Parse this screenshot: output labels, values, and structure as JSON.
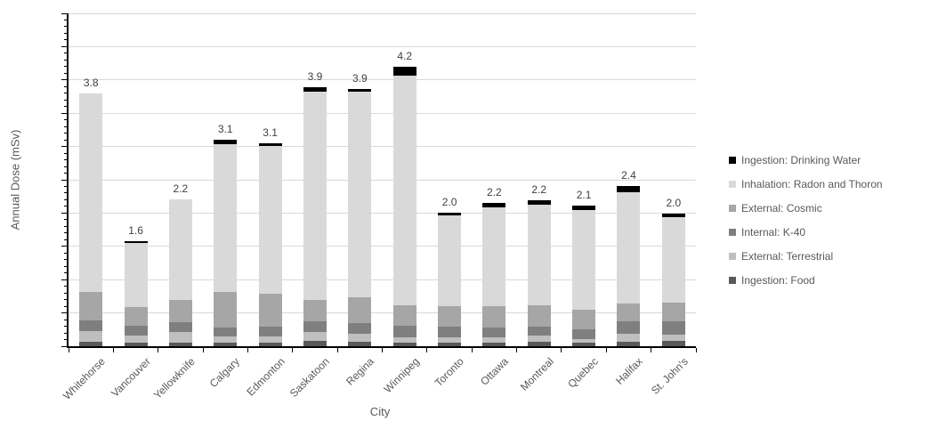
{
  "chart_data": {
    "type": "bar",
    "variant": "stacked",
    "title": "",
    "xlabel": "City",
    "ylabel": "Annual Dose (mSv)",
    "ylim": [
      0,
      5.0
    ],
    "ytick_step": 0.5,
    "ytick_minor_step": 0.1,
    "grid": true,
    "legend_position": "right",
    "categories": [
      "Whitehorse",
      "Vancouver",
      "Yellowknife",
      "Calgary",
      "Edmonton",
      "Saskatoon",
      "Regina",
      "Winnipeg",
      "Toronto",
      "Ottawa",
      "Montreal",
      "Quebec",
      "Halifax",
      "St. John's"
    ],
    "totals": [
      3.8,
      1.6,
      2.2,
      3.1,
      3.1,
      3.9,
      3.9,
      4.2,
      2.0,
      2.2,
      2.2,
      2.1,
      2.4,
      2.0
    ],
    "total_labels": [
      "3.8",
      "1.6",
      "2.2",
      "3.1",
      "3.1",
      "3.9",
      "3.9",
      "4.2",
      "2.0",
      "2.2",
      "2.2",
      "2.1",
      "2.4",
      "2.0"
    ],
    "series": [
      {
        "name": "Ingestion: Food",
        "color": "#595959",
        "values": [
          0.07,
          0.06,
          0.06,
          0.06,
          0.06,
          0.08,
          0.07,
          0.06,
          0.06,
          0.06,
          0.07,
          0.06,
          0.07,
          0.08
        ]
      },
      {
        "name": "External: Terrestrial",
        "color": "#bfbfbf",
        "values": [
          0.16,
          0.1,
          0.15,
          0.09,
          0.09,
          0.13,
          0.12,
          0.07,
          0.08,
          0.07,
          0.09,
          0.05,
          0.12,
          0.09
        ]
      },
      {
        "name": "Internal: K-40",
        "color": "#7f7f7f",
        "values": [
          0.16,
          0.15,
          0.15,
          0.13,
          0.15,
          0.16,
          0.16,
          0.18,
          0.16,
          0.15,
          0.14,
          0.14,
          0.18,
          0.2
        ]
      },
      {
        "name": "External: Cosmic",
        "color": "#a6a6a6",
        "values": [
          0.42,
          0.28,
          0.34,
          0.53,
          0.49,
          0.33,
          0.38,
          0.31,
          0.3,
          0.32,
          0.32,
          0.3,
          0.27,
          0.28
        ]
      },
      {
        "name": "Inhalation: Radon and Thoron",
        "color": "#d9d9d9",
        "values": [
          2.99,
          0.96,
          1.5,
          2.22,
          2.22,
          3.13,
          3.09,
          3.45,
          1.37,
          1.48,
          1.51,
          1.5,
          1.67,
          1.29
        ]
      },
      {
        "name": "Ingestion: Drinking Water",
        "color": "#000000",
        "values": [
          0.0,
          0.03,
          0.0,
          0.07,
          0.04,
          0.06,
          0.05,
          0.13,
          0.03,
          0.07,
          0.06,
          0.06,
          0.1,
          0.05
        ]
      }
    ],
    "legend_items_top_to_bottom": [
      "Ingestion: Drinking Water",
      "Inhalation: Radon and Thoron",
      "External: Cosmic",
      "Internal: K-40",
      "External: Terrestrial",
      "Ingestion: Food"
    ]
  }
}
